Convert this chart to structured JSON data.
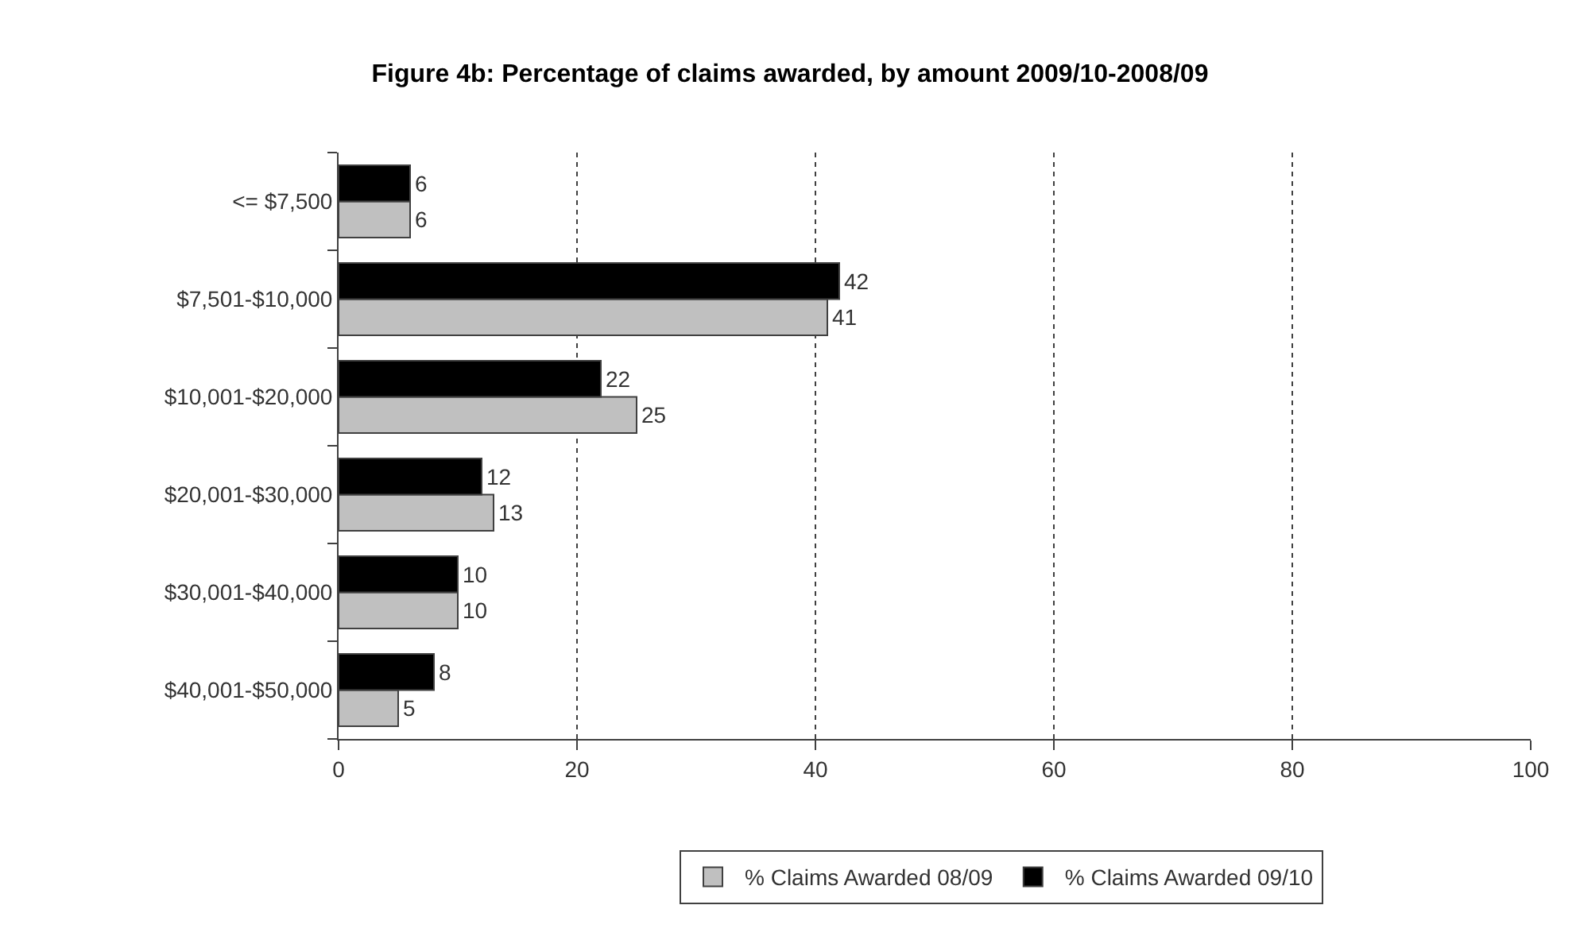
{
  "chart_data": {
    "type": "bar",
    "orientation": "horizontal",
    "title": "Figure 4b: Percentage of claims awarded, by amount 2009/10-2008/09",
    "categories": [
      "<= $7,500",
      "$7,501-$10,000",
      "$10,001-$20,000",
      "$20,001-$30,000",
      "$30,001-$40,000",
      "$40,001-$50,000"
    ],
    "series": [
      {
        "name": "% Claims Awarded 08/09",
        "color": "#c0c0c0",
        "values": [
          6,
          41,
          25,
          13,
          10,
          5
        ]
      },
      {
        "name": "% Claims Awarded 09/10",
        "color": "#000000",
        "values": [
          6,
          42,
          22,
          12,
          10,
          8
        ]
      }
    ],
    "xlim": [
      0,
      100
    ],
    "xticks": [
      0,
      20,
      40,
      60,
      80,
      100
    ],
    "grid": "x",
    "legend": "bottom",
    "data_labels": true
  }
}
